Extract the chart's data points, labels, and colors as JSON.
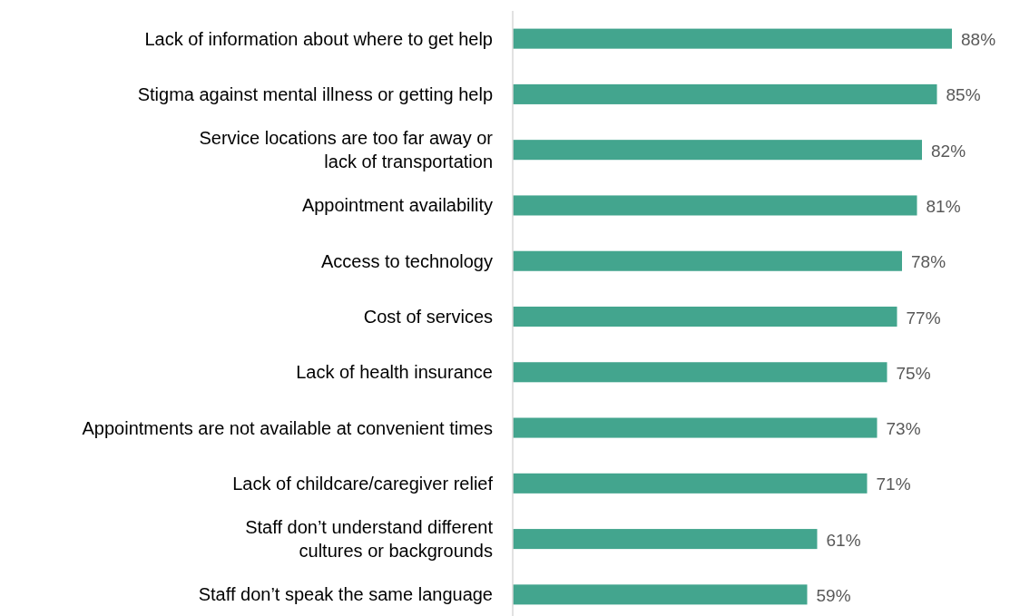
{
  "chart_data": {
    "type": "bar",
    "orientation": "horizontal",
    "categories": [
      "Lack of information about where to get help",
      "Stigma against mental illness or getting help",
      "Service locations are too far away or lack of transportation",
      "Appointment availability",
      "Access to technology",
      "Cost of services",
      "Lack of health insurance",
      "Appointments are not available at convenient times",
      "Lack of childcare/caregiver relief",
      "Staff don’t understand different cultures or backgrounds",
      "Staff don’t speak the same language"
    ],
    "values": [
      88,
      85,
      82,
      81,
      78,
      77,
      75,
      73,
      71,
      61,
      59
    ],
    "value_labels": [
      "88%",
      "85%",
      "82%",
      "81%",
      "78%",
      "77%",
      "75%",
      "73%",
      "71%",
      "61%",
      "59%"
    ],
    "color": "#43a58e"
  }
}
